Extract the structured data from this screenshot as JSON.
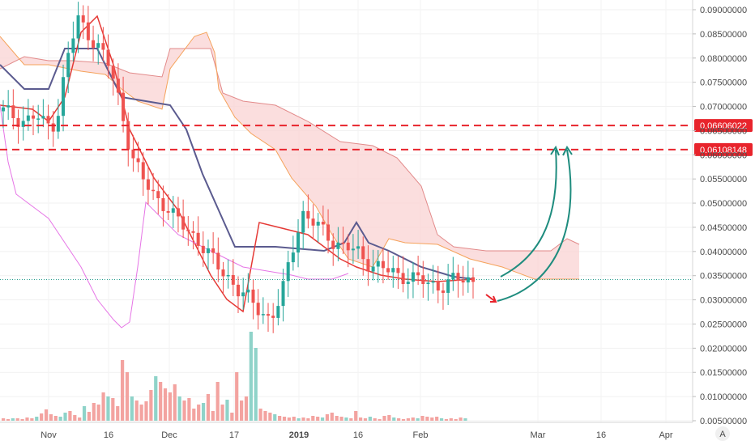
{
  "chart_data": {
    "type": "candlestick",
    "ylim": [
      0.005,
      0.0925
    ],
    "y_ticks": [
      "0.09000000",
      "0.08500000",
      "0.08000000",
      "0.07500000",
      "0.07000000",
      "0.06500000",
      "0.06000000",
      "0.05500000",
      "0.05000000",
      "0.04500000",
      "0.04000000",
      "0.03500000",
      "0.03000000",
      "0.02500000",
      "0.02000000",
      "0.01500000",
      "0.01000000",
      "0.00500000"
    ],
    "x_ticks": [
      "Nov",
      "16",
      "Dec",
      "17",
      "2019",
      "16",
      "Feb",
      "Mar",
      "16",
      "Apr"
    ],
    "bold_x_ticks": [
      "2019"
    ],
    "horizontal_levels": [
      {
        "label": "0.06606022",
        "value": 0.06606022,
        "color": "#e8242c"
      },
      {
        "label": "0.06108148",
        "value": 0.06108148,
        "color": "#e8242c"
      }
    ],
    "current_price_level": 0.0342,
    "candles_close_path": [
      0.069,
      0.068,
      0.067,
      0.068,
      0.066,
      0.067,
      0.08,
      0.088,
      0.085,
      0.082,
      0.078,
      0.07,
      0.06,
      0.055,
      0.052,
      0.05,
      0.047,
      0.045,
      0.043,
      0.04,
      0.037,
      0.035,
      0.032,
      0.03,
      0.028,
      0.026,
      0.03,
      0.04,
      0.048,
      0.046,
      0.044,
      0.042,
      0.041,
      0.04,
      0.038,
      0.037,
      0.036,
      0.035,
      0.035,
      0.034,
      0.033,
      0.033,
      0.034,
      0.034,
      0.034
    ],
    "volume_ylim": [
      0,
      1
    ],
    "colors": {
      "up": "#26a69a",
      "down": "#ef5350",
      "cloud_fill": "#f9d3d3",
      "span_a": "#e28a8a",
      "span_b": "#f5a25a",
      "base_line": "#5b5b8f",
      "conversion_line": "#e53935",
      "lagging_span": "#e675e6",
      "annotation_arrow_green": "#1e8c7e",
      "annotation_arrow_red": "#e8242c",
      "axis_text": "#4a4a4a",
      "badge_bg": "#e8242c",
      "price_line": "#2b9e8f"
    }
  },
  "axis_footer_label": "A"
}
